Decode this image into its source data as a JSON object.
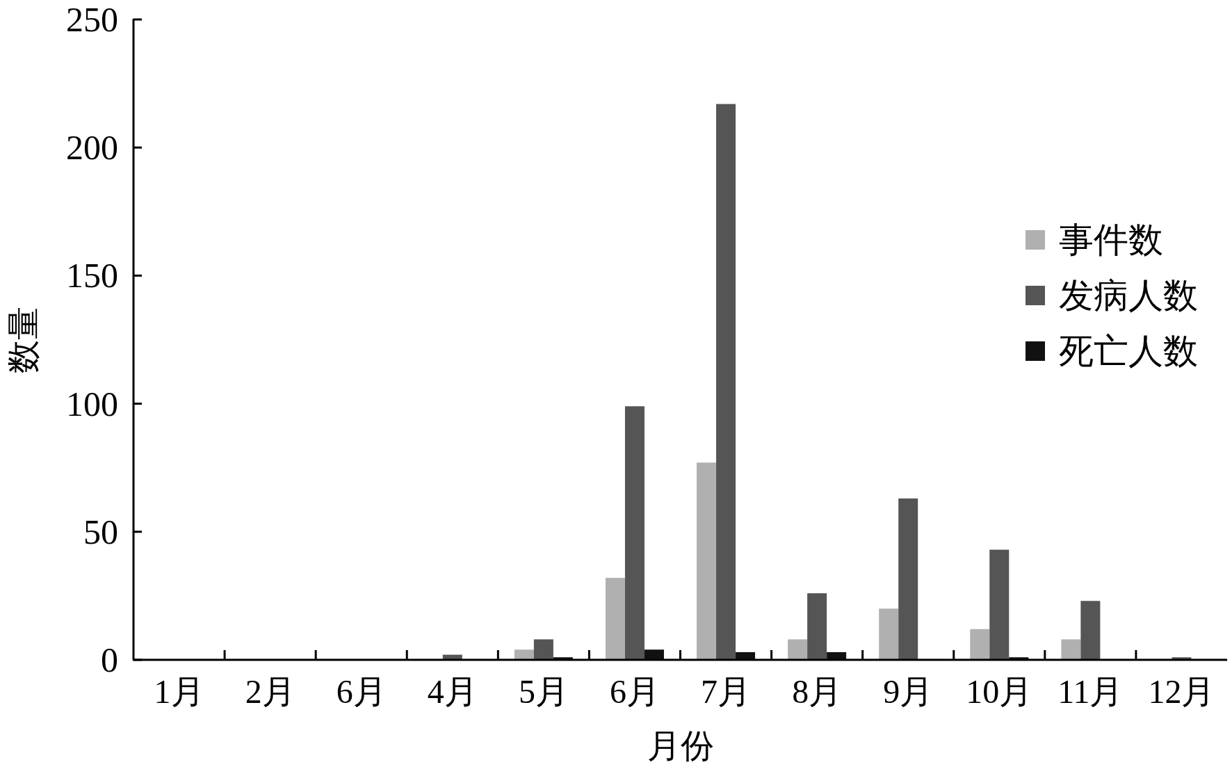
{
  "chart_data": {
    "type": "bar",
    "xlabel": "月份",
    "ylabel": "数量",
    "categories": [
      "1月",
      "2月",
      "6月",
      "4月",
      "5月",
      "6月",
      "7月",
      "8月",
      "9月",
      "10月",
      "11月",
      "12月"
    ],
    "series": [
      {
        "name": "事件数",
        "color": "#b0b0b0",
        "values": [
          0,
          0,
          0,
          0,
          4,
          32,
          77,
          8,
          20,
          12,
          8,
          0
        ]
      },
      {
        "name": "发病人数",
        "color": "#555555",
        "values": [
          0,
          0,
          0,
          2,
          8,
          99,
          217,
          26,
          63,
          43,
          23,
          1
        ]
      },
      {
        "name": "死亡人数",
        "color": "#111111",
        "values": [
          0,
          0,
          0,
          0,
          1,
          4,
          3,
          3,
          0,
          1,
          0,
          0
        ]
      }
    ],
    "ylim": [
      0,
      250
    ],
    "yticks": [
      0,
      50,
      100,
      150,
      200,
      250
    ],
    "legend": "right",
    "grid": false
  }
}
